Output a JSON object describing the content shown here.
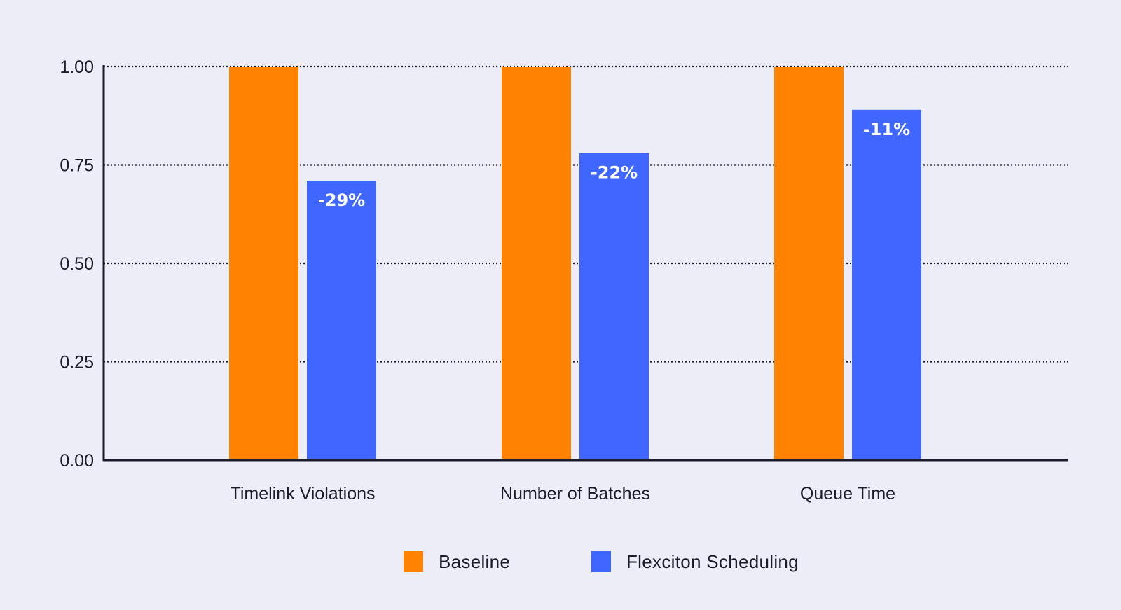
{
  "chart_data": {
    "type": "bar",
    "categories": [
      "Timelink Violations",
      "Number of Batches",
      "Queue Time"
    ],
    "series": [
      {
        "name": "Baseline",
        "values": [
          1.0,
          1.0,
          1.0
        ],
        "color": "#ff8300"
      },
      {
        "name": "Flexciton Scheduling",
        "values": [
          0.71,
          0.78,
          0.89
        ],
        "color": "#3f66ff",
        "labels": [
          "-29%",
          "-22%",
          "-11%"
        ]
      }
    ],
    "ylim": [
      0,
      1
    ],
    "yticks": [
      "0.00",
      "0.25",
      "0.50",
      "0.75",
      "1.00"
    ],
    "ytick_values": [
      0,
      0.25,
      0.5,
      0.75,
      1.0
    ],
    "grid": true,
    "legend_position": "bottom-center",
    "title": "",
    "xlabel": "",
    "ylabel": ""
  }
}
